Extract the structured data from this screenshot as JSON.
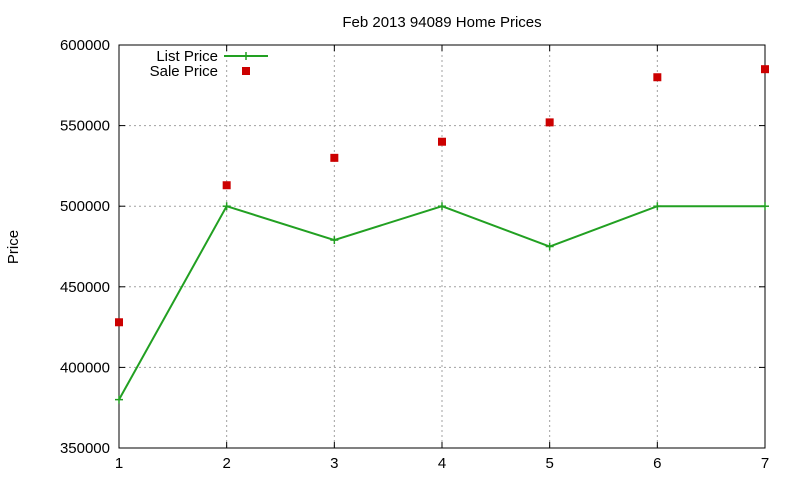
{
  "chart_data": {
    "type": "line",
    "title": "Feb 2013 94089 Home Prices",
    "xlabel": "",
    "ylabel": "Price",
    "x": [
      1,
      2,
      3,
      4,
      5,
      6,
      7
    ],
    "xlim": [
      1,
      7
    ],
    "ylim": [
      350000,
      600000
    ],
    "xticks": [
      "1",
      "2",
      "3",
      "4",
      "5",
      "6",
      "7"
    ],
    "yticks": [
      "350000",
      "400000",
      "450000",
      "500000",
      "550000",
      "600000"
    ],
    "ytick_values": [
      350000,
      400000,
      450000,
      500000,
      550000,
      600000
    ],
    "grid": true,
    "legend_position": "top-left",
    "series": [
      {
        "name": "List Price",
        "style": "line-with-plus-markers",
        "color": "#22a022",
        "values": [
          380000,
          500000,
          479000,
          500000,
          475000,
          500000,
          500000
        ]
      },
      {
        "name": "Sale Price",
        "style": "square-points",
        "color": "#cc0000",
        "values": [
          428000,
          513000,
          530000,
          540000,
          552000,
          580000,
          585000
        ]
      }
    ]
  }
}
